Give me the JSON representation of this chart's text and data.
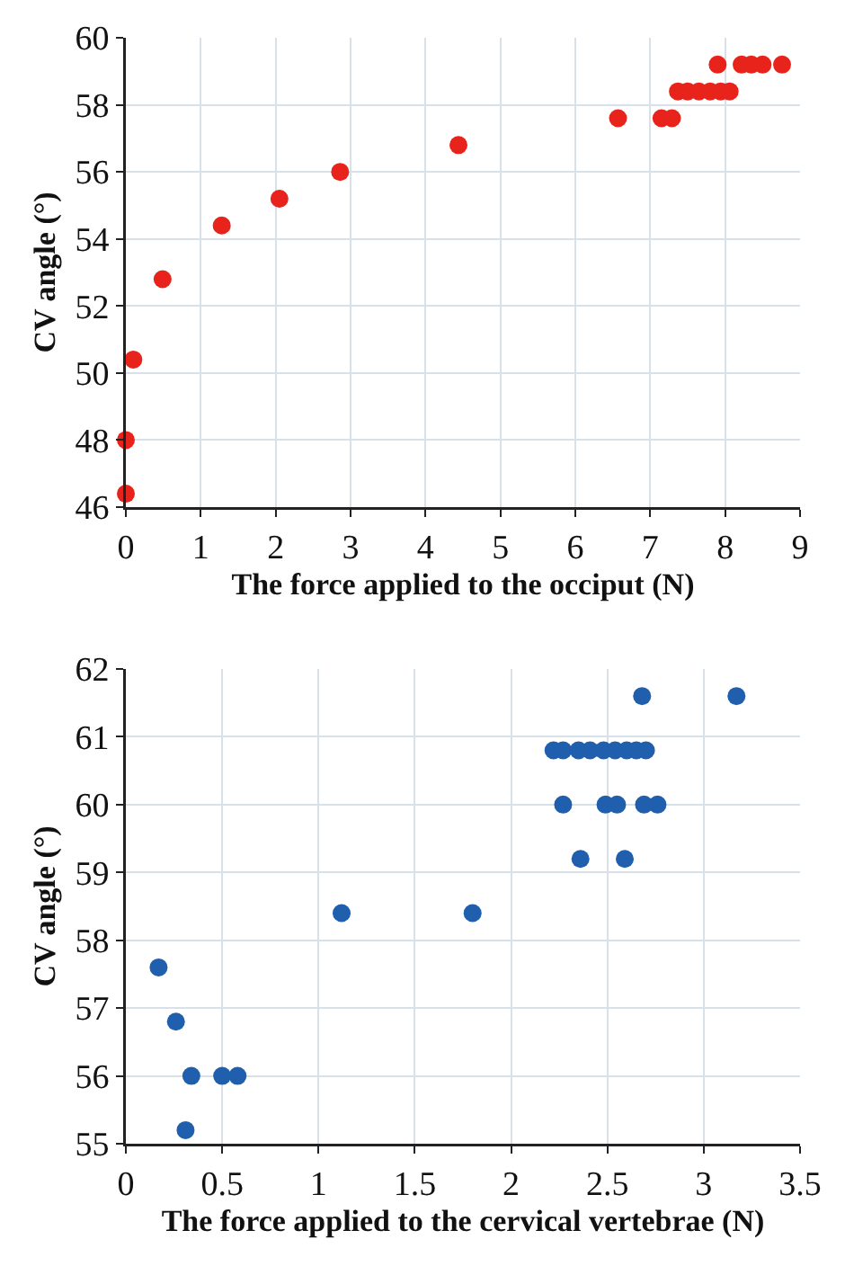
{
  "chart_data": [
    {
      "type": "scatter",
      "xlabel": "The force applied to the occiput (N)",
      "ylabel": "CV angle (°)",
      "xlim": [
        0,
        9
      ],
      "xticks": [
        0,
        1,
        2,
        3,
        4,
        5,
        6,
        7,
        8,
        9
      ],
      "ylim": [
        46,
        60
      ],
      "yticks": [
        46,
        48,
        50,
        52,
        54,
        56,
        58,
        60
      ],
      "grid": true,
      "marker": "circle",
      "series": [
        {
          "color": "#e8231b",
          "x": [
            0,
            0,
            0.1,
            0.49,
            1.28,
            2.05,
            2.86,
            4.44,
            6.57,
            7.15,
            7.29,
            7.37,
            7.5,
            7.65,
            7.8,
            7.94,
            8.06,
            7.9,
            8.22,
            8.35,
            8.5,
            8.76
          ],
          "values": [
            46.4,
            48,
            50.4,
            52.8,
            54.4,
            55.2,
            56,
            56.8,
            57.6,
            57.6,
            57.6,
            58.4,
            58.4,
            58.4,
            58.4,
            58.4,
            58.4,
            59.2,
            59.2,
            59.2,
            59.2,
            59.2
          ]
        }
      ]
    },
    {
      "type": "scatter",
      "xlabel": "The force applied to the cervical vertebrae (N)",
      "ylabel": "CV angle (°)",
      "xlim": [
        0,
        3.5
      ],
      "xticks": [
        0,
        0.5,
        1,
        1.5,
        2,
        2.5,
        3,
        3.5
      ],
      "ylim": [
        55,
        62
      ],
      "yticks": [
        55,
        56,
        57,
        58,
        59,
        60,
        61,
        62
      ],
      "grid": true,
      "marker": "circle",
      "series": [
        {
          "color": "#1f5fae",
          "x": [
            0.17,
            0.26,
            0.34,
            0.5,
            0.58,
            0.31,
            1.12,
            1.8,
            2.68,
            3.17,
            2.22,
            2.27,
            2.35,
            2.41,
            2.48,
            2.54,
            2.6,
            2.65,
            2.7,
            2.27,
            2.49,
            2.55,
            2.69,
            2.76,
            2.36,
            2.59
          ],
          "values": [
            57.6,
            56.8,
            56,
            56,
            56,
            55.2,
            58.4,
            58.4,
            61.6,
            61.6,
            60.8,
            60.8,
            60.8,
            60.8,
            60.8,
            60.8,
            60.8,
            60.8,
            60.8,
            60,
            60,
            60,
            60,
            60,
            59.2,
            59.2
          ]
        }
      ]
    }
  ]
}
